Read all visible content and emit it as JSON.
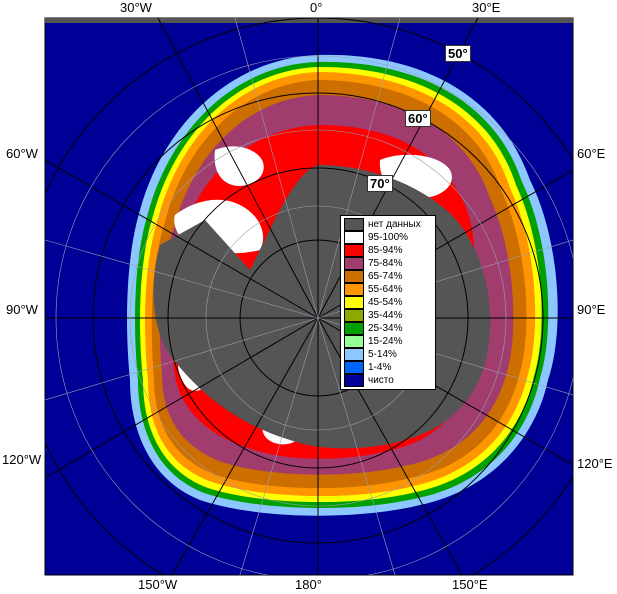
{
  "map": {
    "top_labels": {
      "w30": "30°W",
      "zero": "0°",
      "e30": "30°E"
    },
    "side_labels": {
      "w60": "60°W",
      "e60": "60°E",
      "w90": "90°W",
      "e90": "90°E",
      "w120": "120°W",
      "e120": "120°E"
    },
    "bottom_labels": {
      "w150": "150°W",
      "d180": "180°",
      "e150": "150°E"
    },
    "lat_labels": {
      "l50": "50°",
      "l60": "60°",
      "l70": "70°"
    }
  },
  "legend": {
    "items": [
      {
        "label": "нет данных",
        "color": "#555555"
      },
      {
        "label": "95-100%",
        "color": "#ffffff"
      },
      {
        "label": "85-94%",
        "color": "#ff0000"
      },
      {
        "label": "75-84%",
        "color": "#a03c6e"
      },
      {
        "label": "65-74%",
        "color": "#cd6e00"
      },
      {
        "label": "55-64%",
        "color": "#ff9600"
      },
      {
        "label": "45-54%",
        "color": "#ffff00"
      },
      {
        "label": "35-44%",
        "color": "#8caa00"
      },
      {
        "label": "25-34%",
        "color": "#00a000"
      },
      {
        "label": "15-24%",
        "color": "#96ff96"
      },
      {
        "label": "5-14%",
        "color": "#8cc8ff"
      },
      {
        "label": "1-4%",
        "color": "#0064ff"
      },
      {
        "label": "чисто",
        "color": "#000096"
      }
    ]
  }
}
